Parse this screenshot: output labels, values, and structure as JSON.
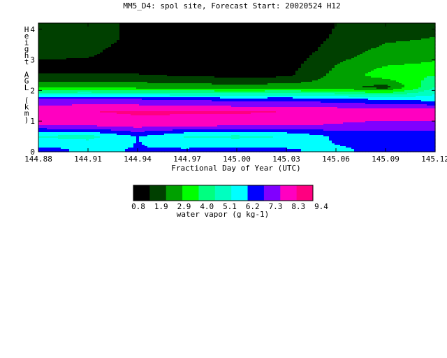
{
  "chart_data": {
    "type": "heatmap",
    "title": "MM5_D4: spol site,  Forecast Start: 20020524 H12",
    "xlabel": "Fractional Day of Year (UTC)",
    "ylabel": "Height AGL (km)",
    "x_ticks": [
      "144.88",
      "144.91",
      "144.94",
      "144.97",
      "145.00",
      "145.03",
      "145.06",
      "145.09",
      "145.12"
    ],
    "y_ticks": [
      "0",
      "1",
      "2",
      "3",
      "4"
    ],
    "xlim": [
      144.88,
      145.12
    ],
    "ylim": [
      0,
      4.2
    ],
    "colorbar": {
      "label": "water vapor (g kg-1)",
      "tick_labels": [
        "0.8",
        "1.9",
        "2.9",
        "4.0",
        "5.1",
        "6.2",
        "7.3",
        "8.3",
        "9.4"
      ],
      "levels": [
        0.8,
        1.35,
        1.9,
        2.4,
        2.9,
        3.45,
        4.0,
        4.55,
        5.1,
        5.65,
        6.2,
        6.75,
        7.3,
        7.8,
        8.3,
        8.85,
        9.4
      ],
      "colors": [
        "#000000",
        "#004000",
        "#00a000",
        "#00ff00",
        "#00ff80",
        "#00ffc0",
        "#00ffff",
        "#0000ff",
        "#8000ff",
        "#ff00c0",
        "#ff0080"
      ]
    },
    "x": [
      144.88,
      144.91,
      144.94,
      144.97,
      145.0,
      145.03,
      145.06,
      145.09,
      145.12
    ],
    "y": [
      0.1,
      0.5,
      0.9,
      1.3,
      1.7,
      2.1,
      2.5,
      2.9,
      3.3,
      3.7,
      4.1
    ],
    "values": [
      [
        6.4,
        6.2,
        6.3,
        6.3,
        6.4,
        6.3,
        6.2,
        6.4,
        6.5
      ],
      [
        5.4,
        5.2,
        6.3,
        5.4,
        5.3,
        5.5,
        6.4,
        6.6,
        6.6
      ],
      [
        8.0,
        8.2,
        8.4,
        8.3,
        8.2,
        8.1,
        7.8,
        7.6,
        7.6
      ],
      [
        8.6,
        8.6,
        8.7,
        8.7,
        8.7,
        8.6,
        8.5,
        8.4,
        8.4
      ],
      [
        7.2,
        7.3,
        7.2,
        7.0,
        6.8,
        6.9,
        6.6,
        6.3,
        6.0
      ],
      [
        3.0,
        3.0,
        2.9,
        2.8,
        2.7,
        2.8,
        2.7,
        2.0,
        4.8
      ],
      [
        1.6,
        1.6,
        1.6,
        1.5,
        1.3,
        1.4,
        2.6,
        3.6,
        3.9
      ],
      [
        1.5,
        1.5,
        1.4,
        1.2,
        1.1,
        1.2,
        2.3,
        3.0,
        3.2
      ],
      [
        1.8,
        1.7,
        1.3,
        1.2,
        0.8,
        1.1,
        1.9,
        2.6,
        2.8
      ],
      [
        2.0,
        1.9,
        1.4,
        1.2,
        0.7,
        1.0,
        1.7,
        2.2,
        2.4
      ],
      [
        2.0,
        1.9,
        1.4,
        1.1,
        0.7,
        0.9,
        1.6,
        2.0,
        2.1
      ]
    ]
  }
}
